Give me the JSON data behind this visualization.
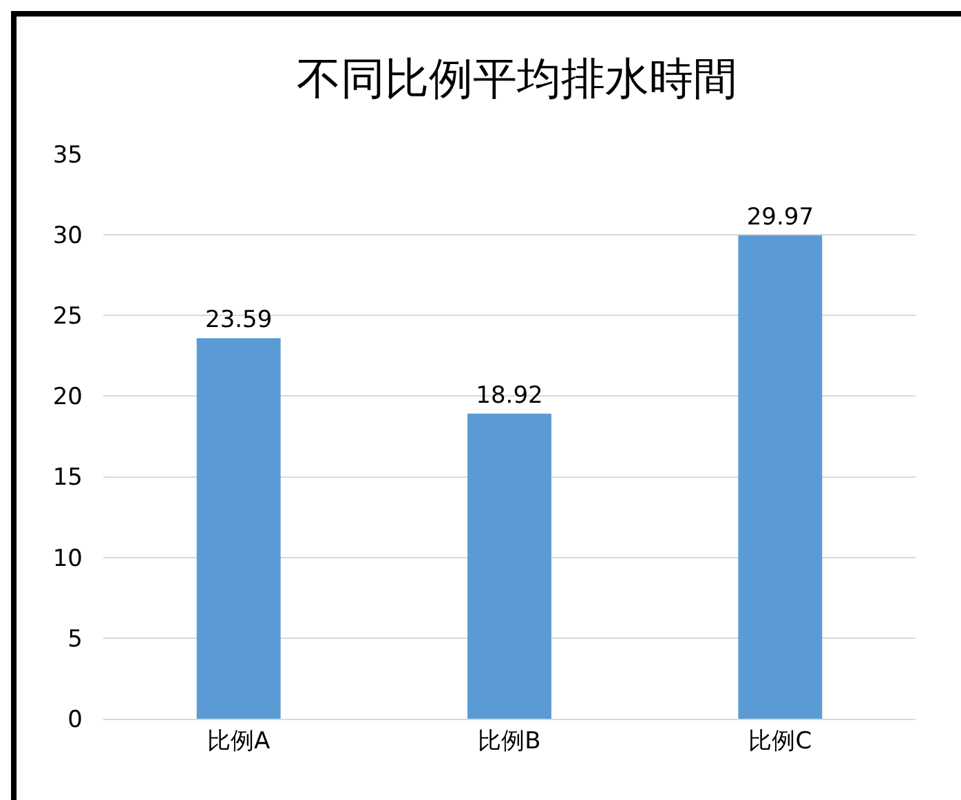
{
  "chart_data": {
    "type": "bar",
    "title": "不同比例平均排水時間",
    "categories": [
      "比例A",
      "比例B",
      "比例C"
    ],
    "values": [
      23.59,
      18.92,
      29.97
    ],
    "color": "#5b9bd5",
    "ylim": [
      0,
      35
    ],
    "yticks": [
      0,
      5,
      10,
      15,
      20,
      25,
      30,
      35
    ],
    "grid": "y",
    "legend": false,
    "data_labels": true
  }
}
